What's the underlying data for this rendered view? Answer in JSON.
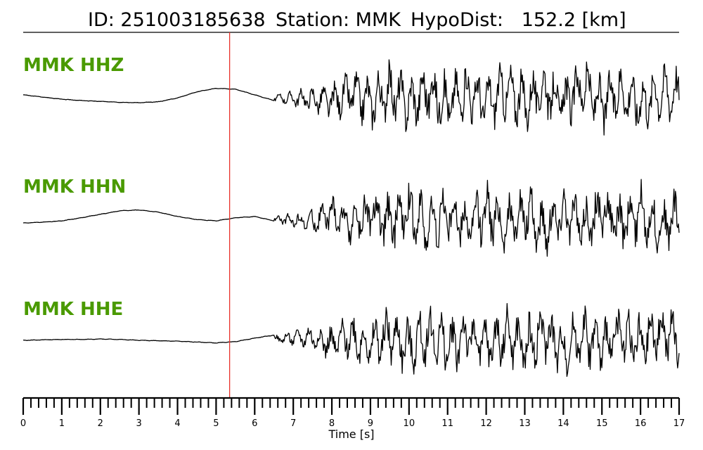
{
  "title": {
    "id_text": "ID: 251003185638",
    "station_text": "Station: MMK",
    "dist_text": "HypoDist:   152.2 [km]"
  },
  "colors": {
    "label": "#4a9a00",
    "trace": "#000000",
    "pick_line": "#e8332a"
  },
  "chart_data": {
    "type": "line",
    "xlabel": "Time [s]",
    "xlim": [
      0,
      17
    ],
    "grid": false,
    "x_ticks": [
      "0",
      "1",
      "2",
      "3",
      "4",
      "5",
      "6",
      "7",
      "8",
      "9",
      "10",
      "11",
      "12",
      "13",
      "14",
      "15",
      "16",
      "17"
    ],
    "pick_time": 5.35,
    "series": [
      {
        "name": "MMK HHZ",
        "x": [
          0,
          0.5,
          1,
          1.5,
          2,
          2.5,
          3,
          3.5,
          4,
          4.5,
          5,
          5.5,
          6,
          6.5,
          7,
          7.5,
          8,
          8.5,
          9,
          9.5,
          10,
          10.5,
          11,
          11.5,
          12,
          12.5,
          13,
          13.5,
          14,
          14.5,
          15,
          15.5,
          16,
          16.5,
          17
        ],
        "y": [
          0.05,
          0.0,
          -0.05,
          -0.08,
          -0.1,
          -0.12,
          -0.13,
          -0.11,
          -0.02,
          0.12,
          0.2,
          0.18,
          0.05,
          -0.08,
          -0.12,
          -0.2,
          -0.4,
          0.35,
          -0.45,
          0.5,
          -0.55,
          0.6,
          -0.6,
          0.5,
          -0.55,
          0.6,
          -0.5,
          0.65,
          -0.55,
          1.0,
          -0.7,
          0.55,
          -0.6,
          0.5,
          0.3
        ]
      },
      {
        "name": "MMK HHN",
        "x": [
          0,
          0.5,
          1,
          1.5,
          2,
          2.5,
          3,
          3.5,
          4,
          4.5,
          5,
          5.5,
          6,
          6.5,
          7,
          7.5,
          8,
          8.5,
          9,
          9.5,
          10,
          10.5,
          11,
          11.5,
          12,
          12.5,
          13,
          13.5,
          14,
          14.5,
          15,
          15.5,
          16,
          16.5,
          17
        ],
        "y": [
          -0.1,
          -0.08,
          -0.05,
          0.02,
          0.1,
          0.18,
          0.2,
          0.15,
          0.05,
          -0.02,
          -0.05,
          0.02,
          0.05,
          -0.05,
          -0.15,
          -0.3,
          0.4,
          -0.5,
          0.55,
          -0.6,
          0.7,
          -0.65,
          0.6,
          -0.7,
          0.65,
          -0.6,
          0.55,
          -0.9,
          0.8,
          -0.7,
          0.75,
          -0.6,
          0.7,
          -0.65,
          0.2
        ]
      },
      {
        "name": "MMK HHE",
        "x": [
          0,
          0.5,
          1,
          1.5,
          2,
          2.5,
          3,
          3.5,
          4,
          4.5,
          5,
          5.5,
          6,
          6.5,
          7,
          7.5,
          8,
          8.5,
          9,
          9.5,
          10,
          10.5,
          11,
          11.5,
          12,
          12.5,
          13,
          13.5,
          14,
          14.5,
          15,
          15.5,
          16,
          16.5,
          17
        ],
        "y": [
          0.0,
          0.01,
          0.02,
          0.02,
          0.03,
          0.02,
          0.0,
          -0.01,
          -0.02,
          -0.04,
          -0.06,
          -0.03,
          0.05,
          0.12,
          0.2,
          0.3,
          -0.35,
          0.4,
          -0.5,
          0.55,
          -0.7,
          0.6,
          -0.55,
          0.5,
          -0.6,
          0.55,
          -0.6,
          0.75,
          -0.85,
          0.6,
          -0.55,
          0.65,
          -0.5,
          0.9,
          -0.1
        ]
      }
    ]
  }
}
